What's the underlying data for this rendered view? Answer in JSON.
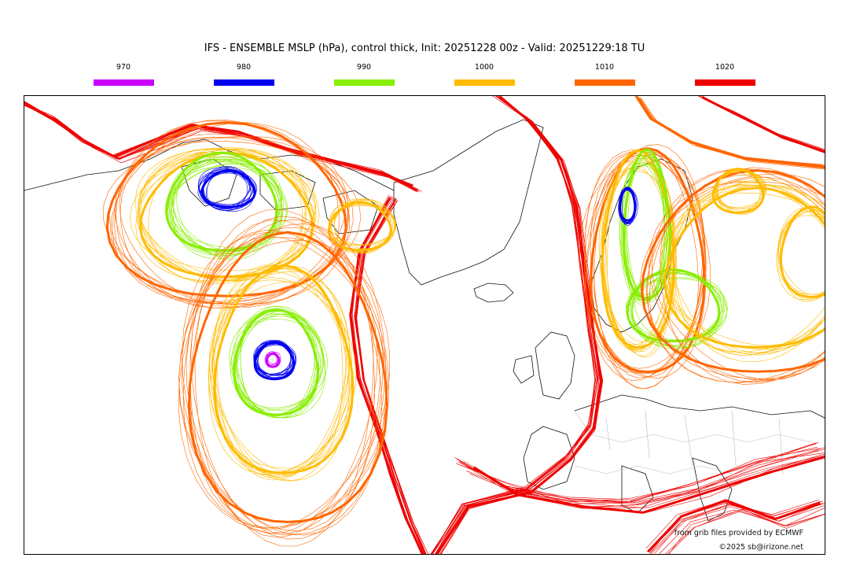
{
  "title": "IFS - ENSEMBLE MSLP (hPa), control thick, Init: 20251228 00z - Valid: 20251229:18 TU",
  "legend": [
    {
      "label": "970",
      "color": "#cc00ff"
    },
    {
      "label": "980",
      "color": "#0000ee"
    },
    {
      "label": "990",
      "color": "#88ee00"
    },
    {
      "label": "1000",
      "color": "#ffbb00"
    },
    {
      "label": "1010",
      "color": "#ff6600"
    },
    {
      "label": "1020",
      "color": "#ee0000"
    }
  ],
  "credits": {
    "grib": "from grib files provided by ECMWF",
    "copyright": "©2025 sb@irizone.net"
  }
}
